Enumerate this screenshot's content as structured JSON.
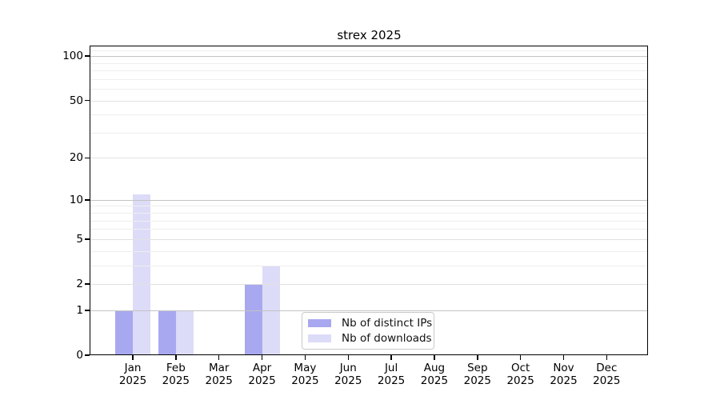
{
  "title": "strex 2025",
  "chart_data": {
    "type": "bar",
    "title": "strex 2025",
    "categories": [
      "Jan",
      "Feb",
      "Mar",
      "Apr",
      "May",
      "Jun",
      "Jul",
      "Aug",
      "Sep",
      "Oct",
      "Nov",
      "Dec"
    ],
    "year_label": "2025",
    "series": [
      {
        "name": "Nb of distinct IPs",
        "color": "#a8a8f0",
        "values": [
          1,
          1,
          0,
          2,
          0,
          0,
          0,
          0,
          0,
          0,
          0,
          0
        ]
      },
      {
        "name": "Nb of downloads",
        "color": "#dcdcf8",
        "values": [
          11,
          1,
          0,
          3,
          0,
          0,
          0,
          0,
          0,
          0,
          0,
          0
        ]
      }
    ],
    "y_axis": {
      "scale": "log1p",
      "labeled_ticks": [
        0,
        1,
        2,
        5,
        10,
        20,
        50,
        100
      ],
      "decade_gridlines": [
        1,
        10,
        100
      ],
      "mid_gridlines": [
        2,
        5,
        20,
        50
      ],
      "minor_gridlines": [
        3,
        4,
        6,
        7,
        8,
        9,
        30,
        40,
        60,
        70,
        80,
        90,
        110
      ],
      "range_max": 115
    },
    "grid": true,
    "legend_position": "bottom-center",
    "colors": {
      "grid_decade": "#c3c3c3",
      "grid_mid": "#e1e1e1",
      "grid_minor": "#eeeeee",
      "spine": "#000000",
      "background": "#ffffff"
    }
  }
}
